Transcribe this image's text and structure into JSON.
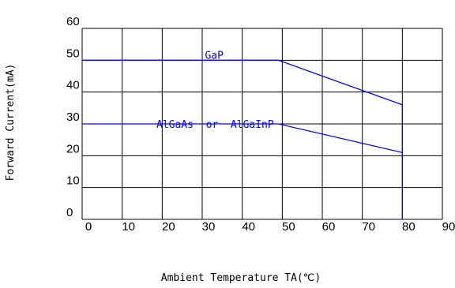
{
  "chart_data": {
    "type": "line",
    "ylabel": "Forward Current(mA)",
    "xlabel": "Ambient Temperature TA(℃)",
    "xlim": [
      0,
      90
    ],
    "ylim": [
      0,
      60
    ],
    "x_ticks": [
      "0",
      "10",
      "20",
      "30",
      "40",
      "50",
      "60",
      "70",
      "80",
      "90"
    ],
    "y_ticks": [
      "0",
      "10",
      "20",
      "30",
      "40",
      "50",
      "60"
    ],
    "grid": true,
    "series": [
      {
        "name": "GaP",
        "x": [
          0,
          49,
          80,
          80
        ],
        "y": [
          50,
          50,
          36,
          0
        ],
        "color": "#0000ff"
      },
      {
        "name": "AlGaAs  or  AlGaInP",
        "x": [
          0,
          49,
          80
        ],
        "y": [
          30,
          30,
          21
        ],
        "color": "#0000ff"
      }
    ],
    "annotations": []
  }
}
